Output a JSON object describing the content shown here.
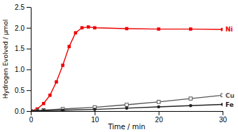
{
  "chart_data": {
    "type": "line",
    "xlabel": "Time / min",
    "ylabel": "Hydrogen Evolved / μmol",
    "xlim": [
      0,
      30
    ],
    "ylim": [
      0,
      2.5
    ],
    "xticks": [
      0,
      10,
      20,
      30
    ],
    "yticks": [
      {
        "value": 0,
        "label": "0.0"
      },
      0.5,
      {
        "value": 1,
        "label": "1.0"
      },
      1.5,
      {
        "value": 2,
        "label": "2.0"
      },
      2.5
    ],
    "grid": false,
    "series": [
      {
        "name": "Ni",
        "color": "#ee0000",
        "marker": "square",
        "x": [
          0,
          1,
          2,
          3,
          4,
          5,
          6,
          7,
          8,
          9,
          10,
          15,
          20,
          25,
          30
        ],
        "values": [
          0,
          0.05,
          0.18,
          0.38,
          0.7,
          1.1,
          1.55,
          1.88,
          2.0,
          2.02,
          2.0,
          1.98,
          1.97,
          1.97,
          1.96
        ]
      },
      {
        "name": "Cu",
        "color": "#555555",
        "marker": "square-open",
        "x": [
          0,
          1,
          2,
          5,
          10,
          15,
          20,
          25,
          30
        ],
        "values": [
          0,
          0.01,
          0.02,
          0.05,
          0.09,
          0.15,
          0.22,
          0.3,
          0.38
        ]
      },
      {
        "name": "Fe",
        "color": "#222222",
        "marker": "circle",
        "x": [
          0,
          1,
          2,
          5,
          10,
          15,
          20,
          25,
          30
        ],
        "values": [
          0,
          0.005,
          0.01,
          0.02,
          0.04,
          0.07,
          0.1,
          0.13,
          0.16
        ]
      }
    ]
  }
}
